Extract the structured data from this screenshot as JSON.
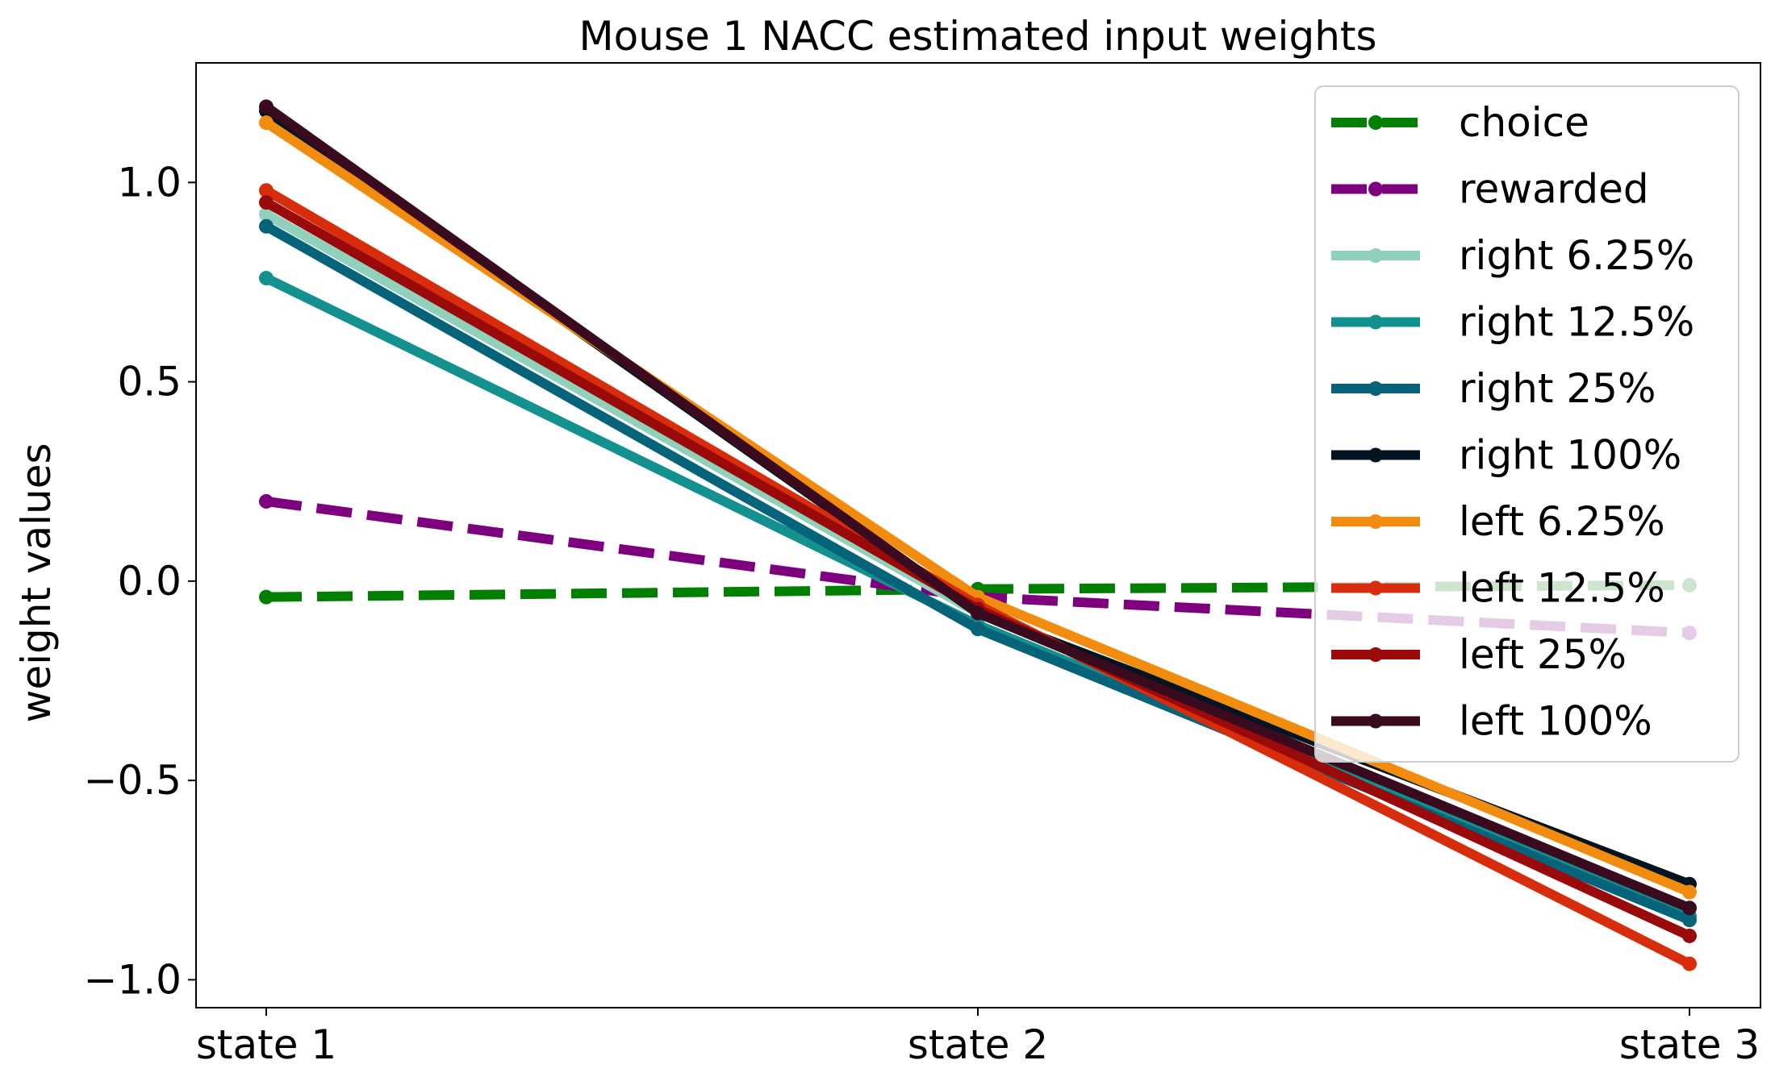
{
  "chart_data": {
    "type": "line",
    "title": "Mouse 1 NACC estimated input weights",
    "xlabel": "",
    "ylabel": "weight values",
    "categories": [
      "state 1",
      "state 2",
      "state 3"
    ],
    "ylim": [
      -1.07,
      1.3
    ],
    "yticks": [
      {
        "value": 1.0,
        "label": "1.0"
      },
      {
        "value": 0.5,
        "label": "0.5"
      },
      {
        "value": 0.0,
        "label": "0.0"
      },
      {
        "value": -0.5,
        "label": "−0.5"
      },
      {
        "value": -1.0,
        "label": "−1.0"
      }
    ],
    "grid": false,
    "legend_position": "top-right",
    "series": [
      {
        "name": "choice",
        "values": [
          -0.04,
          -0.02,
          -0.01
        ],
        "color": "#007f00",
        "dashed": true
      },
      {
        "name": "rewarded",
        "values": [
          0.2,
          -0.04,
          -0.13
        ],
        "color": "#7f007f",
        "dashed": true
      },
      {
        "name": "right 6.25%",
        "values": [
          0.92,
          -0.08,
          -0.82
        ],
        "color": "#8fd1bb",
        "dashed": false
      },
      {
        "name": "right 12.5%",
        "values": [
          0.76,
          -0.11,
          -0.84
        ],
        "color": "#13918f",
        "dashed": false
      },
      {
        "name": "right 25%",
        "values": [
          0.89,
          -0.12,
          -0.85
        ],
        "color": "#05647a",
        "dashed": false
      },
      {
        "name": "right 100%",
        "values": [
          1.18,
          -0.08,
          -0.76
        ],
        "color": "#02141f",
        "dashed": false
      },
      {
        "name": "left 6.25%",
        "values": [
          1.15,
          -0.04,
          -0.78
        ],
        "color": "#f18c0e",
        "dashed": false
      },
      {
        "name": "left 12.5%",
        "values": [
          0.98,
          -0.06,
          -0.96
        ],
        "color": "#d82d0c",
        "dashed": false
      },
      {
        "name": "left 25%",
        "values": [
          0.95,
          -0.07,
          -0.89
        ],
        "color": "#9a0a0a",
        "dashed": false
      },
      {
        "name": "left 100%",
        "values": [
          1.19,
          -0.08,
          -0.82
        ],
        "color": "#3a0a1f",
        "dashed": false
      }
    ]
  }
}
